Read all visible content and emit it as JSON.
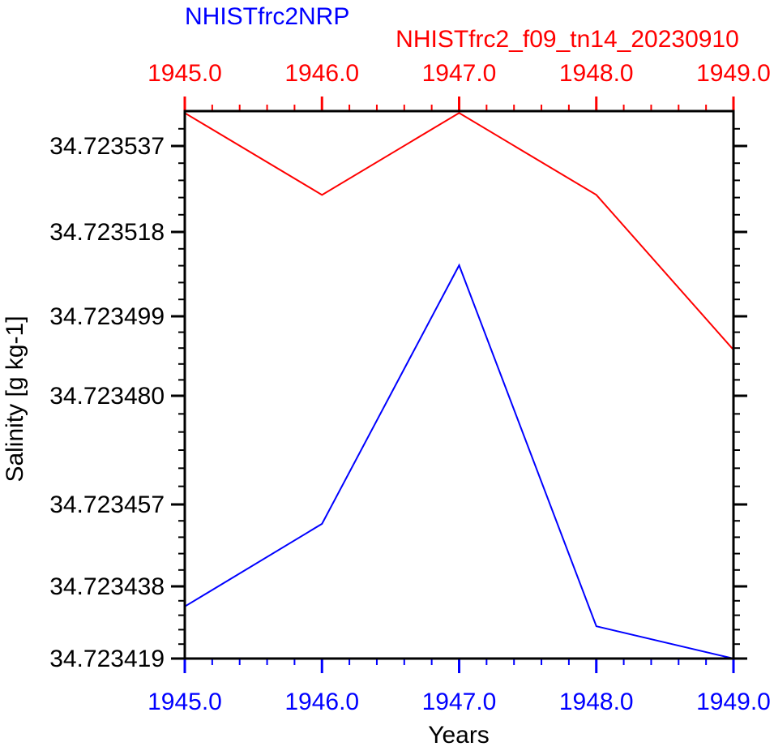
{
  "chart_data": {
    "type": "line",
    "titles": {
      "left": "NHISTfrc2NRP",
      "right": "NHISTfrc2_f09_tn14_20230910"
    },
    "xlabel": "Years",
    "ylabel": "Salinity [g kg-1]",
    "x": [
      1945.0,
      1946.0,
      1947.0,
      1948.0,
      1949.0
    ],
    "x_tick_labels": [
      "1945.0",
      "1946.0",
      "1947.0",
      "1948.0",
      "1949.0"
    ],
    "x_range": [
      1945.0,
      1949.0
    ],
    "y_range": [
      34.723419,
      34.723545
    ],
    "y_tick_labels": [
      "34.723537",
      "34.723518",
      "34.723499",
      "34.723480",
      "34.723457",
      "34.723438",
      "34.723419"
    ],
    "y_tick_values": [
      34.723537,
      34.723518,
      34.723499,
      34.72348,
      34.723457,
      34.723438,
      34.723419
    ],
    "grid": false,
    "legend": false,
    "axis_color": "#000000",
    "series": [
      {
        "name": "NHISTfrc2NRP",
        "color": "#0000ff",
        "labels_axis": "bottom",
        "values": [
          34.7234327,
          34.7234525,
          34.7235105,
          34.7234275,
          34.723419
        ]
      },
      {
        "name": "NHISTfrc2_f09_tn14_20230910",
        "color": "#ff0000",
        "labels_axis": "top",
        "values": [
          34.7235443,
          34.7235262,
          34.7235443,
          34.7235262,
          34.723491
        ]
      }
    ]
  }
}
